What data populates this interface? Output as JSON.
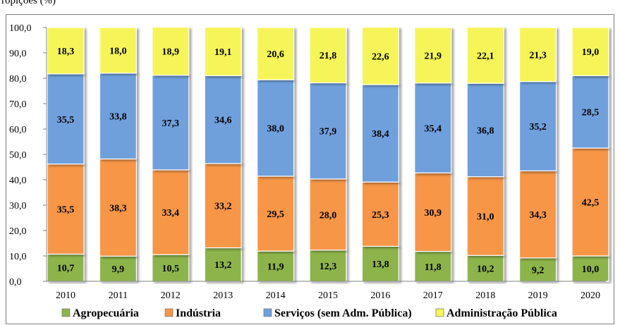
{
  "header_text": "ropições (%)",
  "chart_data": {
    "type": "bar",
    "stacked": true,
    "categories": [
      "2010",
      "2011",
      "2012",
      "2013",
      "2014",
      "2015",
      "2016",
      "2017",
      "2018",
      "2019",
      "2020"
    ],
    "series": [
      {
        "name": "Agropecuária",
        "color": "#8db44c",
        "values": [
          10.7,
          9.9,
          10.5,
          13.2,
          11.9,
          12.3,
          13.8,
          11.8,
          10.2,
          9.2,
          10.0
        ],
        "labels": [
          "10,7",
          "9,9",
          "10,5",
          "13,2",
          "11,9",
          "12,3",
          "13,8",
          "11,8",
          "10,2",
          "9,2",
          "10,0"
        ]
      },
      {
        "name": "Indústria",
        "color": "#f79646",
        "values": [
          35.5,
          38.3,
          33.4,
          33.2,
          29.5,
          28.0,
          25.3,
          30.9,
          31.0,
          34.3,
          42.5
        ],
        "labels": [
          "35,5",
          "38,3",
          "33,4",
          "33,2",
          "29,5",
          "28,0",
          "25,3",
          "30,9",
          "31,0",
          "34,3",
          "42,5"
        ]
      },
      {
        "name": "Serviços (sem Adm. Pública)",
        "color": "#6fa0dc",
        "values": [
          35.5,
          33.8,
          37.3,
          34.6,
          38.0,
          37.9,
          38.4,
          35.4,
          36.8,
          35.2,
          28.5
        ],
        "labels": [
          "35,5",
          "33,8",
          "37,3",
          "34,6",
          "38,0",
          "37,9",
          "38,4",
          "35,4",
          "36,8",
          "35,2",
          "28,5"
        ]
      },
      {
        "name": "Administração Pública",
        "color": "#f5f55a",
        "values": [
          18.3,
          18.0,
          18.9,
          19.1,
          20.6,
          21.8,
          22.6,
          21.9,
          22.1,
          21.3,
          19.0
        ],
        "labels": [
          "18,3",
          "18,0",
          "18,9",
          "19,1",
          "20,6",
          "21,8",
          "22,6",
          "21,9",
          "22,1",
          "21,3",
          "19,0"
        ]
      }
    ],
    "yticks": [
      "0,0",
      "10,0",
      "20,0",
      "30,0",
      "40,0",
      "50,0",
      "60,0",
      "70,0",
      "80,0",
      "90,0",
      "100,0"
    ],
    "ylim": [
      0,
      100
    ],
    "grid": false,
    "legend": "bottom"
  }
}
